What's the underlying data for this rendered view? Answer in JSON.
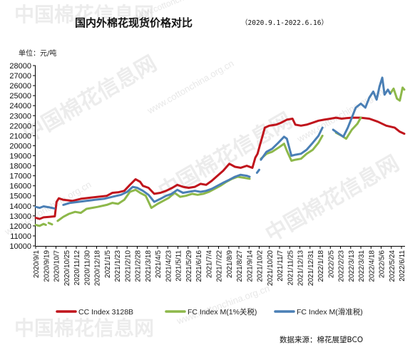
{
  "watermark": {
    "text": "中国棉花信息网",
    "url": "www.cottonchina.org.cn"
  },
  "chart_data": {
    "type": "line",
    "title": "国内外棉花现货价格对比",
    "subtitle": "（2020.9.1-2022.6.16）",
    "unit_label": "单位：元/吨",
    "source": "数据来源：棉花展望BCO",
    "ylim": [
      10000,
      28000
    ],
    "yticks": [
      10000,
      11000,
      12000,
      13000,
      14000,
      15000,
      16000,
      17000,
      18000,
      19000,
      20000,
      21000,
      22000,
      23000,
      24000,
      25000,
      26000,
      27000,
      28000
    ],
    "xlim": [
      "2020-09-01",
      "2022-06-16"
    ],
    "xticks": [
      "2020/9/1",
      "2020/9/19",
      "2020/10/7",
      "2020/10/25",
      "2020/11/12",
      "2020/11/30",
      "2020/12/18",
      "2021/1/5",
      "2021/1/23",
      "2021/2/10",
      "2021/2/28",
      "2021/3/18",
      "2021/4/5",
      "2021/4/23",
      "2021/5/11",
      "2021/5/29",
      "2021/6/16",
      "2021/7/4",
      "2021/7/22",
      "2021/8/9",
      "2021/8/27",
      "2021/9/14",
      "2021/10/2",
      "2021/10/20",
      "2021/11/7",
      "2021/11/25",
      "2021/12/13",
      "2021/12/31",
      "2022/1/18",
      "2022/2/5",
      "2022/2/23",
      "2022/3/13",
      "2022/3/31",
      "2022/4/18",
      "2022/5/6",
      "2022/5/24",
      "2022/6/11"
    ],
    "grid": false,
    "legend_position": "bottom",
    "series": [
      {
        "name": "CC Index 3128B",
        "color": "#c0141c",
        "points": [
          [
            "2020-09-01",
            12800
          ],
          [
            "2020-09-08",
            12700
          ],
          [
            "2020-09-15",
            12850
          ],
          [
            "2020-09-25",
            12900
          ],
          [
            "2020-10-05",
            12950
          ],
          [
            "2020-10-08",
            14400
          ],
          [
            "2020-10-12",
            14750
          ],
          [
            "2020-10-20",
            14600
          ],
          [
            "2020-11-05",
            14500
          ],
          [
            "2020-11-20",
            14700
          ],
          [
            "2020-12-05",
            14800
          ],
          [
            "2020-12-20",
            14900
          ],
          [
            "2021-01-05",
            15000
          ],
          [
            "2021-01-15",
            15300
          ],
          [
            "2021-01-25",
            15350
          ],
          [
            "2021-02-05",
            15500
          ],
          [
            "2021-02-15",
            16100
          ],
          [
            "2021-02-25",
            16650
          ],
          [
            "2021-03-05",
            16400
          ],
          [
            "2021-03-10",
            16000
          ],
          [
            "2021-03-20",
            15800
          ],
          [
            "2021-03-30",
            15200
          ],
          [
            "2021-04-10",
            15300
          ],
          [
            "2021-04-20",
            15500
          ],
          [
            "2021-05-01",
            15800
          ],
          [
            "2021-05-10",
            16100
          ],
          [
            "2021-05-20",
            15900
          ],
          [
            "2021-05-30",
            15800
          ],
          [
            "2021-06-10",
            15900
          ],
          [
            "2021-06-20",
            16200
          ],
          [
            "2021-06-30",
            16100
          ],
          [
            "2021-07-10",
            16500
          ],
          [
            "2021-07-20",
            17000
          ],
          [
            "2021-07-30",
            17500
          ],
          [
            "2021-08-10",
            18200
          ],
          [
            "2021-08-20",
            17900
          ],
          [
            "2021-08-30",
            17800
          ],
          [
            "2021-09-10",
            18000
          ],
          [
            "2021-09-20",
            17800
          ],
          [
            "2021-09-25",
            18800
          ],
          [
            "2021-09-29",
            19200
          ],
          [
            "2021-10-03",
            20000
          ],
          [
            "2021-10-08",
            21000
          ],
          [
            "2021-10-12",
            21800
          ],
          [
            "2021-10-20",
            22000
          ],
          [
            "2021-11-01",
            22100
          ],
          [
            "2021-11-10",
            22300
          ],
          [
            "2021-11-20",
            22600
          ],
          [
            "2021-11-30",
            22700
          ],
          [
            "2021-12-05",
            22100
          ],
          [
            "2021-12-15",
            22000
          ],
          [
            "2021-12-25",
            22100
          ],
          [
            "2022-01-05",
            22300
          ],
          [
            "2022-01-15",
            22500
          ],
          [
            "2022-01-25",
            22600
          ],
          [
            "2022-02-05",
            22700
          ],
          [
            "2022-02-15",
            22800
          ],
          [
            "2022-02-25",
            22700
          ],
          [
            "2022-03-05",
            22750
          ],
          [
            "2022-03-15",
            22800
          ],
          [
            "2022-03-31",
            22800
          ],
          [
            "2022-04-15",
            22700
          ],
          [
            "2022-04-30",
            22400
          ],
          [
            "2022-05-15",
            22000
          ],
          [
            "2022-05-30",
            21800
          ],
          [
            "2022-06-08",
            21400
          ],
          [
            "2022-06-16",
            21200
          ]
        ]
      },
      {
        "name": "FC Index M(1%关税)",
        "color": "#8db84a",
        "points": [
          [
            "2020-09-01",
            12100
          ],
          [
            "2020-09-08",
            12000
          ],
          [
            "2020-09-15",
            12200
          ],
          [
            "2020-09-19",
            12100
          ],
          null,
          [
            "2020-09-24",
            12300
          ],
          [
            "2020-09-30",
            12150
          ],
          null,
          [
            "2020-10-10",
            12500
          ],
          [
            "2020-10-20",
            12900
          ],
          [
            "2020-10-30",
            13200
          ],
          [
            "2020-11-10",
            13400
          ],
          [
            "2020-11-20",
            13300
          ],
          [
            "2020-11-30",
            13700
          ],
          [
            "2020-12-10",
            13800
          ],
          [
            "2020-12-20",
            13900
          ],
          [
            "2021-01-05",
            14100
          ],
          [
            "2021-01-15",
            14300
          ],
          [
            "2021-01-25",
            14200
          ],
          [
            "2021-02-05",
            14600
          ],
          [
            "2021-02-15",
            15400
          ],
          [
            "2021-02-25",
            15600
          ],
          [
            "2021-03-05",
            15300
          ],
          [
            "2021-03-15",
            15000
          ],
          [
            "2021-03-25",
            13800
          ],
          [
            "2021-04-05",
            14200
          ],
          [
            "2021-04-15",
            14500
          ],
          [
            "2021-04-25",
            14800
          ],
          [
            "2021-05-05",
            15300
          ],
          [
            "2021-05-15",
            14900
          ],
          [
            "2021-05-25",
            15000
          ],
          [
            "2021-06-05",
            15200
          ],
          [
            "2021-06-15",
            15100
          ],
          [
            "2021-06-25",
            15200
          ],
          [
            "2021-07-05",
            15400
          ],
          [
            "2021-07-15",
            15700
          ],
          [
            "2021-07-25",
            16000
          ],
          [
            "2021-08-05",
            16400
          ],
          [
            "2021-08-15",
            16700
          ],
          [
            "2021-08-25",
            16900
          ],
          [
            "2021-09-05",
            16800
          ],
          [
            "2021-09-15",
            16700
          ],
          null,
          [
            "2021-10-05",
            18700
          ],
          [
            "2021-10-15",
            19200
          ],
          [
            "2021-10-25",
            19400
          ],
          [
            "2021-11-05",
            19800
          ],
          [
            "2021-11-15",
            20200
          ],
          [
            "2021-11-20",
            19500
          ],
          [
            "2021-11-28",
            18500
          ],
          [
            "2021-12-05",
            18600
          ],
          [
            "2021-12-15",
            18700
          ],
          [
            "2021-12-25",
            19200
          ],
          [
            "2022-01-05",
            19600
          ],
          [
            "2022-01-15",
            20300
          ],
          [
            "2022-01-22",
            21000
          ],
          null,
          [
            "2022-02-15",
            21300
          ],
          [
            "2022-02-25",
            21000
          ],
          [
            "2022-03-05",
            20700
          ],
          [
            "2022-03-15",
            21600
          ],
          [
            "2022-03-25",
            22200
          ],
          [
            "2022-03-31",
            22800
          ],
          null,
          [
            "2022-05-22",
            25200
          ],
          [
            "2022-05-28",
            25700
          ],
          [
            "2022-06-03",
            24700
          ],
          [
            "2022-06-08",
            24500
          ],
          [
            "2022-06-13",
            25800
          ],
          [
            "2022-06-16",
            25600
          ]
        ]
      },
      {
        "name": "FC Index M(滑准税)",
        "color": "#4a7fb5",
        "points": [
          [
            "2020-09-01",
            13900
          ],
          [
            "2020-09-08",
            13800
          ],
          [
            "2020-09-15",
            13950
          ],
          [
            "2020-09-25",
            13850
          ],
          [
            "2020-10-04",
            13750
          ],
          null,
          [
            "2020-10-20",
            14100
          ],
          [
            "2020-11-01",
            14300
          ],
          [
            "2020-11-15",
            14400
          ],
          [
            "2020-11-30",
            14500
          ],
          [
            "2020-12-15",
            14600
          ],
          [
            "2020-12-31",
            14700
          ],
          [
            "2021-01-15",
            14900
          ],
          [
            "2021-01-30",
            15100
          ],
          [
            "2021-02-10",
            15400
          ],
          [
            "2021-02-20",
            15900
          ],
          [
            "2021-02-28",
            15800
          ],
          [
            "2021-03-10",
            15500
          ],
          [
            "2021-03-20",
            15100
          ],
          [
            "2021-03-30",
            14400
          ],
          [
            "2021-04-10",
            14700
          ],
          [
            "2021-04-20",
            15000
          ],
          [
            "2021-04-30",
            15200
          ],
          [
            "2021-05-10",
            15600
          ],
          [
            "2021-05-20",
            15300
          ],
          [
            "2021-05-30",
            15400
          ],
          [
            "2021-06-10",
            15500
          ],
          [
            "2021-06-20",
            15400
          ],
          [
            "2021-06-30",
            15500
          ],
          [
            "2021-07-10",
            15700
          ],
          [
            "2021-07-20",
            16000
          ],
          [
            "2021-07-30",
            16300
          ],
          [
            "2021-08-10",
            16600
          ],
          [
            "2021-08-20",
            16900
          ],
          [
            "2021-08-30",
            17100
          ],
          [
            "2021-09-10",
            17000
          ],
          [
            "2021-09-15",
            16900
          ],
          null,
          [
            "2021-09-28",
            17300
          ],
          [
            "2021-10-02",
            17600
          ],
          null,
          [
            "2021-10-05",
            18600
          ],
          [
            "2021-10-15",
            19400
          ],
          [
            "2021-10-25",
            19700
          ],
          [
            "2021-11-05",
            20300
          ],
          [
            "2021-11-15",
            20900
          ],
          [
            "2021-11-20",
            20700
          ],
          [
            "2021-11-28",
            19000
          ],
          [
            "2021-12-05",
            19100
          ],
          [
            "2021-12-15",
            19200
          ],
          [
            "2021-12-25",
            19600
          ],
          [
            "2022-01-05",
            20300
          ],
          [
            "2022-01-15",
            21000
          ],
          [
            "2022-01-22",
            21800
          ],
          null,
          [
            "2022-02-10",
            21600
          ],
          [
            "2022-02-20",
            21200
          ],
          [
            "2022-02-28",
            20900
          ],
          [
            "2022-03-08",
            21800
          ],
          [
            "2022-03-15",
            22800
          ],
          [
            "2022-03-22",
            23800
          ],
          [
            "2022-03-31",
            24200
          ],
          [
            "2022-04-08",
            23800
          ],
          [
            "2022-04-15",
            24800
          ],
          [
            "2022-04-22",
            25400
          ],
          [
            "2022-04-28",
            24600
          ],
          [
            "2022-05-03",
            25900
          ],
          [
            "2022-05-08",
            26800
          ],
          [
            "2022-05-12",
            25100
          ],
          [
            "2022-05-18",
            25600
          ],
          [
            "2022-05-22",
            25200
          ]
        ]
      }
    ]
  }
}
